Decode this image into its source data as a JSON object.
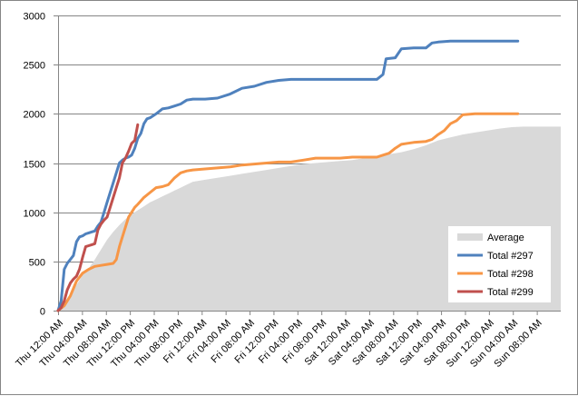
{
  "chart_data": {
    "type": "line",
    "title": "",
    "xlabel": "",
    "ylabel": "",
    "ylim": [
      0,
      3000
    ],
    "yticks": [
      0,
      500,
      1000,
      1500,
      2000,
      2500,
      3000
    ],
    "xticks": [
      "Thu 12:00 AM",
      "Thu 04:00 AM",
      "Thu 08:00 AM",
      "Thu 12:00 PM",
      "Thu 04:00 PM",
      "Thu 08:00 PM",
      "Fri 12:00 AM",
      "Fri 04:00 AM",
      "Fri 08:00 AM",
      "Fri 12:00 PM",
      "Fri 04:00 PM",
      "Fri 08:00 PM",
      "Sat 12:00 AM",
      "Sat 04:00 AM",
      "Sat 08:00 AM",
      "Sat 12:00 PM",
      "Sat 04:00 PM",
      "Sat 08:00 PM",
      "Sun 12:00 AM",
      "Sun 04:00 AM",
      "Sun 08:00 AM"
    ],
    "x_unit": "hours elapsed since Thu 12:00 AM",
    "xlim": [
      0,
      82
    ],
    "grid": "horizontal",
    "legend_position": "right",
    "series": [
      {
        "name": "Average",
        "kind": "area",
        "color": "#d9d9d9",
        "points": [
          [
            0,
            0
          ],
          [
            1,
            60
          ],
          [
            2,
            150
          ],
          [
            3,
            260
          ],
          [
            4,
            360
          ],
          [
            5,
            430
          ],
          [
            6,
            520
          ],
          [
            7,
            620
          ],
          [
            8,
            720
          ],
          [
            9,
            800
          ],
          [
            10,
            870
          ],
          [
            11,
            930
          ],
          [
            12,
            980
          ],
          [
            13,
            1020
          ],
          [
            14,
            1060
          ],
          [
            15,
            1100
          ],
          [
            16,
            1130
          ],
          [
            17,
            1160
          ],
          [
            18,
            1190
          ],
          [
            19,
            1220
          ],
          [
            20,
            1250
          ],
          [
            21,
            1280
          ],
          [
            22,
            1310
          ],
          [
            24,
            1330
          ],
          [
            26,
            1350
          ],
          [
            28,
            1370
          ],
          [
            30,
            1390
          ],
          [
            32,
            1410
          ],
          [
            34,
            1430
          ],
          [
            36,
            1450
          ],
          [
            38,
            1470
          ],
          [
            40,
            1490
          ],
          [
            42,
            1500
          ],
          [
            44,
            1510
          ],
          [
            46,
            1520
          ],
          [
            48,
            1530
          ],
          [
            50,
            1550
          ],
          [
            52,
            1570
          ],
          [
            54,
            1590
          ],
          [
            56,
            1610
          ],
          [
            58,
            1640
          ],
          [
            60,
            1680
          ],
          [
            62,
            1730
          ],
          [
            64,
            1760
          ],
          [
            66,
            1790
          ],
          [
            68,
            1810
          ],
          [
            70,
            1830
          ],
          [
            72,
            1850
          ],
          [
            74,
            1865
          ],
          [
            76,
            1870
          ],
          [
            78,
            1870
          ],
          [
            80,
            1870
          ],
          [
            82,
            1870
          ]
        ]
      },
      {
        "name": "Total #297",
        "kind": "line",
        "color": "#4f81bd",
        "points": [
          [
            0,
            0
          ],
          [
            0.5,
            100
          ],
          [
            1,
            420
          ],
          [
            1.5,
            480
          ],
          [
            2,
            520
          ],
          [
            2.5,
            560
          ],
          [
            3,
            700
          ],
          [
            3.5,
            750
          ],
          [
            4,
            760
          ],
          [
            4.5,
            780
          ],
          [
            5,
            790
          ],
          [
            5.5,
            800
          ],
          [
            6,
            810
          ],
          [
            6.5,
            860
          ],
          [
            7,
            900
          ],
          [
            7.5,
            1000
          ],
          [
            8,
            1100
          ],
          [
            8.5,
            1200
          ],
          [
            9,
            1300
          ],
          [
            9.5,
            1400
          ],
          [
            10,
            1500
          ],
          [
            10.5,
            1530
          ],
          [
            11,
            1550
          ],
          [
            11.5,
            1560
          ],
          [
            12,
            1580
          ],
          [
            12.5,
            1650
          ],
          [
            13,
            1750
          ],
          [
            13.5,
            1800
          ],
          [
            14,
            1900
          ],
          [
            14.5,
            1950
          ],
          [
            15,
            1960
          ],
          [
            16,
            2000
          ],
          [
            17,
            2050
          ],
          [
            18,
            2060
          ],
          [
            19,
            2080
          ],
          [
            20,
            2100
          ],
          [
            21,
            2140
          ],
          [
            22,
            2150
          ],
          [
            24,
            2150
          ],
          [
            26,
            2160
          ],
          [
            28,
            2200
          ],
          [
            30,
            2260
          ],
          [
            32,
            2280
          ],
          [
            34,
            2320
          ],
          [
            36,
            2340
          ],
          [
            38,
            2350
          ],
          [
            40,
            2350
          ],
          [
            42,
            2350
          ],
          [
            44,
            2350
          ],
          [
            46,
            2350
          ],
          [
            48,
            2350
          ],
          [
            50,
            2350
          ],
          [
            52,
            2350
          ],
          [
            53,
            2400
          ],
          [
            53.5,
            2560
          ],
          [
            55,
            2570
          ],
          [
            56,
            2660
          ],
          [
            58,
            2670
          ],
          [
            60,
            2670
          ],
          [
            61,
            2720
          ],
          [
            62,
            2730
          ],
          [
            64,
            2740
          ],
          [
            66,
            2740
          ],
          [
            68,
            2740
          ],
          [
            70,
            2740
          ],
          [
            72,
            2740
          ],
          [
            75,
            2740
          ]
        ]
      },
      {
        "name": "Total #298",
        "kind": "line",
        "color": "#f79646",
        "points": [
          [
            0,
            0
          ],
          [
            1,
            50
          ],
          [
            2,
            150
          ],
          [
            3,
            300
          ],
          [
            4,
            380
          ],
          [
            5,
            420
          ],
          [
            6,
            450
          ],
          [
            7,
            460
          ],
          [
            8,
            470
          ],
          [
            9,
            480
          ],
          [
            9.5,
            520
          ],
          [
            10,
            650
          ],
          [
            10.5,
            750
          ],
          [
            11,
            850
          ],
          [
            11.5,
            950
          ],
          [
            12,
            1000
          ],
          [
            12.5,
            1050
          ],
          [
            13,
            1080
          ],
          [
            14,
            1150
          ],
          [
            15,
            1200
          ],
          [
            16,
            1250
          ],
          [
            17,
            1260
          ],
          [
            18,
            1280
          ],
          [
            19,
            1350
          ],
          [
            20,
            1400
          ],
          [
            21,
            1420
          ],
          [
            22,
            1430
          ],
          [
            24,
            1440
          ],
          [
            26,
            1450
          ],
          [
            28,
            1460
          ],
          [
            30,
            1480
          ],
          [
            32,
            1490
          ],
          [
            34,
            1500
          ],
          [
            36,
            1510
          ],
          [
            38,
            1510
          ],
          [
            40,
            1530
          ],
          [
            42,
            1550
          ],
          [
            44,
            1550
          ],
          [
            46,
            1550
          ],
          [
            48,
            1560
          ],
          [
            50,
            1560
          ],
          [
            52,
            1560
          ],
          [
            53,
            1580
          ],
          [
            54,
            1600
          ],
          [
            55,
            1650
          ],
          [
            56,
            1690
          ],
          [
            57,
            1700
          ],
          [
            58,
            1710
          ],
          [
            60,
            1720
          ],
          [
            61,
            1740
          ],
          [
            62,
            1790
          ],
          [
            63,
            1830
          ],
          [
            64,
            1900
          ],
          [
            65,
            1930
          ],
          [
            66,
            1990
          ],
          [
            68,
            2000
          ],
          [
            70,
            2000
          ],
          [
            72,
            2000
          ],
          [
            75,
            2000
          ]
        ]
      },
      {
        "name": "Total #299",
        "kind": "line",
        "color": "#c0504d",
        "points": [
          [
            0,
            0
          ],
          [
            0.5,
            30
          ],
          [
            1,
            100
          ],
          [
            1.5,
            210
          ],
          [
            2,
            280
          ],
          [
            2.5,
            320
          ],
          [
            3,
            350
          ],
          [
            3.5,
            420
          ],
          [
            4,
            540
          ],
          [
            4.5,
            650
          ],
          [
            5,
            660
          ],
          [
            5.5,
            670
          ],
          [
            6,
            680
          ],
          [
            6.5,
            820
          ],
          [
            7,
            880
          ],
          [
            7.5,
            920
          ],
          [
            8,
            950
          ],
          [
            8.5,
            1050
          ],
          [
            9,
            1150
          ],
          [
            9.5,
            1250
          ],
          [
            10,
            1350
          ],
          [
            10.5,
            1500
          ],
          [
            11,
            1550
          ],
          [
            11.5,
            1620
          ],
          [
            12,
            1700
          ],
          [
            12.5,
            1730
          ],
          [
            13,
            1890
          ]
        ]
      }
    ]
  }
}
